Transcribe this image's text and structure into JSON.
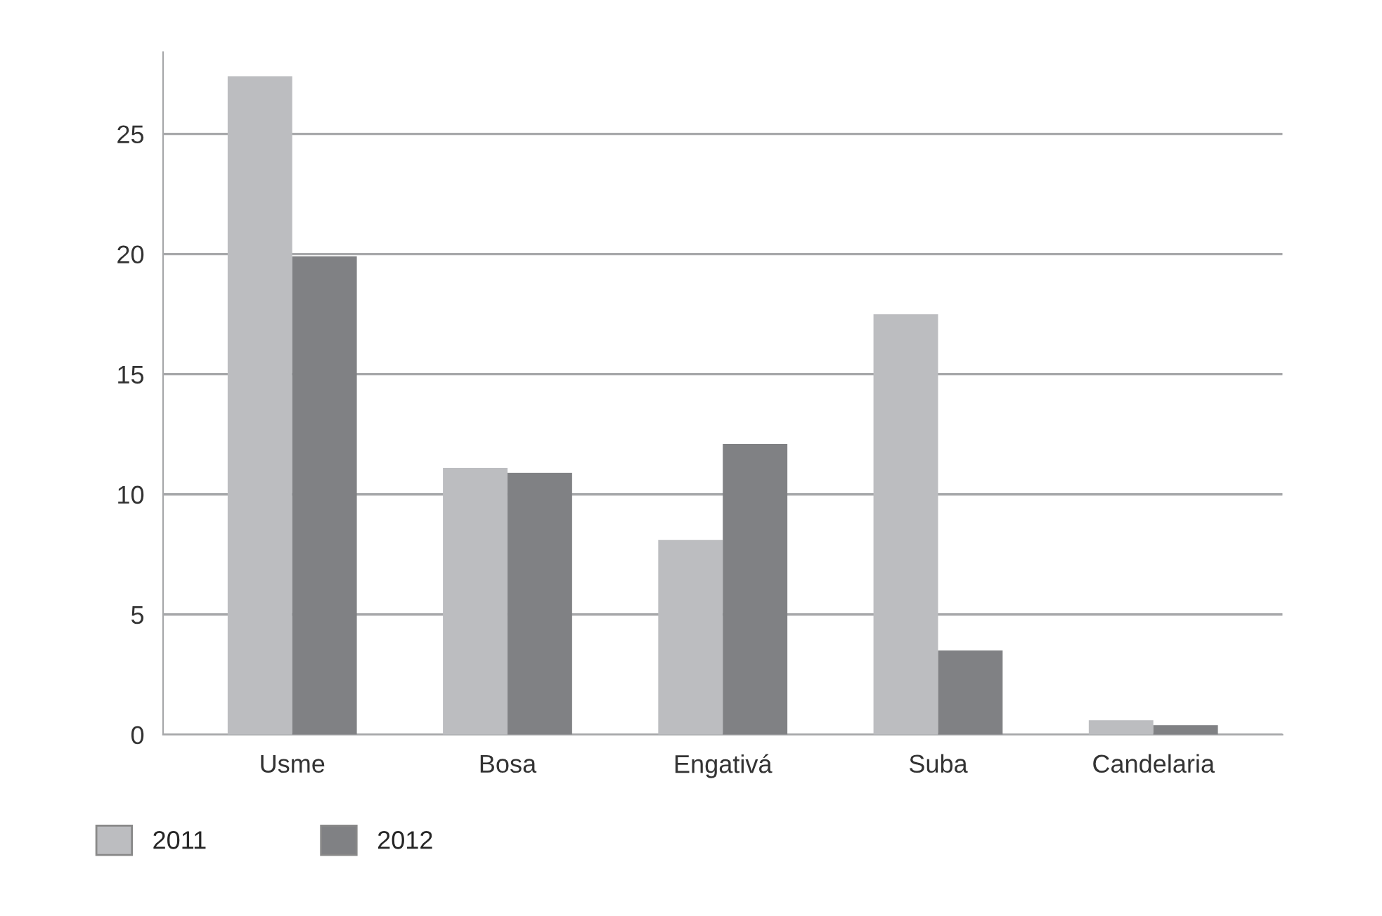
{
  "chart_data": {
    "type": "bar",
    "categories": [
      "Usme",
      "Bosa",
      "Engativá",
      "Suba",
      "Candelaria"
    ],
    "series": [
      {
        "name": "2011",
        "color": "#bcbdc0",
        "values": [
          27.4,
          11.1,
          8.1,
          17.5,
          0.6
        ]
      },
      {
        "name": "2012",
        "color": "#808184",
        "values": [
          19.9,
          10.9,
          12.1,
          3.5,
          0.4
        ]
      }
    ],
    "ylim": [
      0,
      28.4
    ],
    "yticks": [
      0,
      5,
      10,
      15,
      20,
      25
    ],
    "grid": "y",
    "legend": "bottom left"
  }
}
